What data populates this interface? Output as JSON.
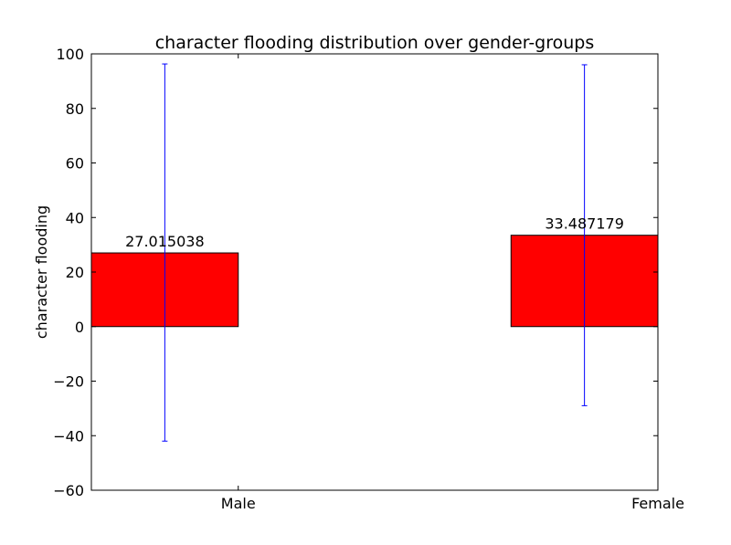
{
  "chart_data": {
    "type": "bar",
    "title": "character flooding distribution over gender-groups",
    "xlabel": "",
    "ylabel": "character flooding",
    "categories": [
      "Male",
      "Female"
    ],
    "values": [
      27.015038,
      33.487179
    ],
    "value_labels": [
      "27.015038",
      "33.487179"
    ],
    "error_bars": [
      {
        "low": -42.0,
        "high": 96.3
      },
      {
        "low": -29.0,
        "high": 96.0
      }
    ],
    "ylim": [
      -60,
      100
    ],
    "yticks": [
      -60,
      -40,
      -20,
      0,
      20,
      40,
      60,
      80,
      100
    ],
    "ytick_labels": [
      "−60",
      "−40",
      "−20",
      "0",
      "20",
      "40",
      "60",
      "80",
      "100"
    ],
    "grid": false,
    "legend": "none",
    "bar_color": "#ff0000",
    "errorbar_color": "#0000ff"
  }
}
